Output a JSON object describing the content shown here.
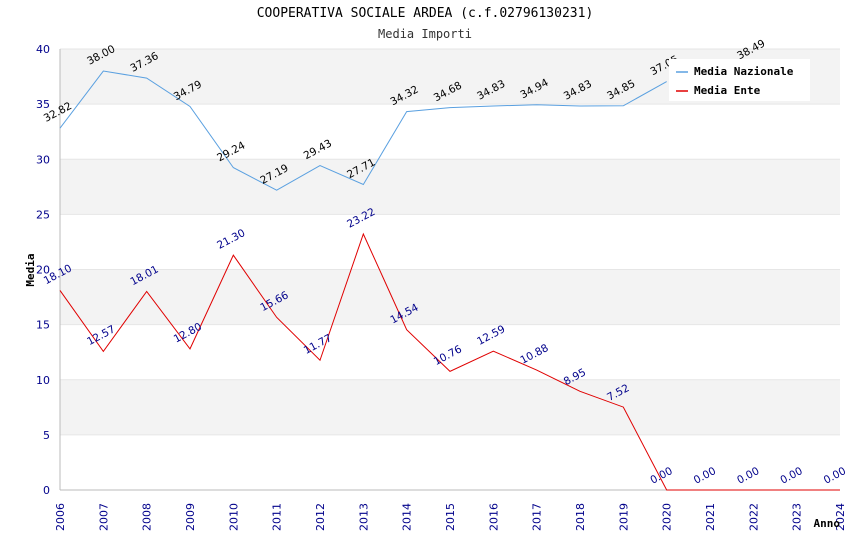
{
  "header": {
    "title": "COOPERATIVA SOCIALE ARDEA (c.f.02796130231)",
    "subtitle": "Media Importi"
  },
  "colors": {
    "nazionale": "#5aa0e0",
    "ente": "#e00000",
    "band": "#f3f3f3",
    "axis_text": "#00008b"
  },
  "chart_data": {
    "type": "line",
    "title": "COOPERATIVA SOCIALE ARDEA (c.f.02796130231)",
    "subtitle": "Media Importi",
    "xlabel": "Anno",
    "ylabel": "Media",
    "ylim": [
      0,
      40
    ],
    "yticks": [
      0,
      5,
      10,
      15,
      20,
      25,
      30,
      35,
      40
    ],
    "x": [
      "2006",
      "2007",
      "2008",
      "2009",
      "2010",
      "2011",
      "2012",
      "2013",
      "2014",
      "2015",
      "2016",
      "2017",
      "2018",
      "2019",
      "2020",
      "2021",
      "2022",
      "2023",
      "2024"
    ],
    "grid": "horizontal-bands",
    "legend_position": "top-right",
    "series": [
      {
        "name": "Media Nazionale",
        "values": [
          32.82,
          38.0,
          37.36,
          34.79,
          29.24,
          27.19,
          29.43,
          27.71,
          34.32,
          34.68,
          34.83,
          34.94,
          34.83,
          34.85,
          37.05,
          null,
          38.49,
          null,
          null
        ],
        "labels": [
          "32.82",
          "38.00",
          "37.36",
          "34.79",
          "29.24",
          "27.19",
          "29.43",
          "27.71",
          "34.32",
          "34.68",
          "34.83",
          "34.94",
          "34.83",
          "34.85",
          "37.05",
          "",
          "38.49",
          "",
          ""
        ]
      },
      {
        "name": "Media Ente",
        "values": [
          18.1,
          12.57,
          18.01,
          12.8,
          21.3,
          15.66,
          11.77,
          23.22,
          14.54,
          10.76,
          12.59,
          10.88,
          8.95,
          7.52,
          0.0,
          0.0,
          0.0,
          0.0,
          0.0
        ],
        "labels": [
          "18.10",
          "12.57",
          "18.01",
          "12.80",
          "21.30",
          "15.66",
          "11.77",
          "23.22",
          "14.54",
          "10.76",
          "12.59",
          "10.88",
          "8.95",
          "7.52",
          "0.00",
          "0.00",
          "0.00",
          "0.00",
          "0.00"
        ]
      }
    ]
  }
}
